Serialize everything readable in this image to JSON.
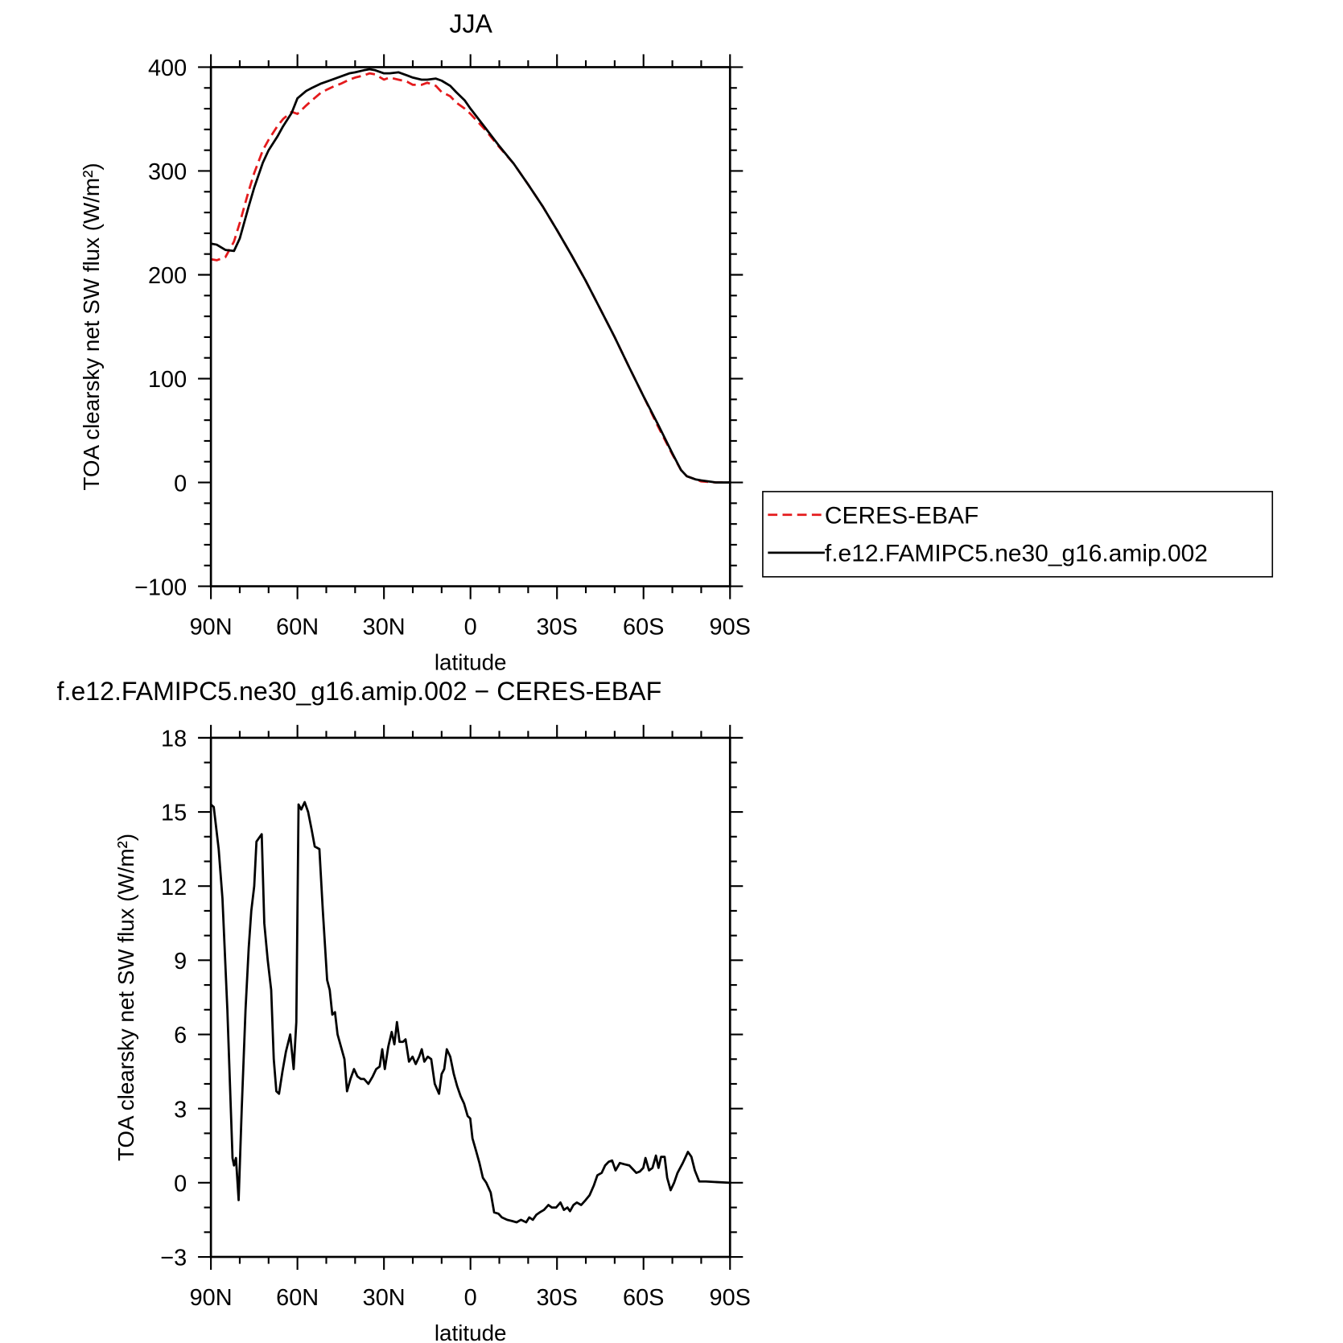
{
  "chart_data": [
    {
      "type": "line",
      "title": "JJA",
      "xlabel": "latitude",
      "ylabel": "TOA clearsky net SW flux (W/m²)",
      "x": [
        90,
        88,
        85,
        82,
        80,
        77,
        75,
        72,
        70,
        67,
        65,
        62,
        60,
        57,
        55,
        52,
        50,
        47,
        45,
        42,
        40,
        37,
        35,
        33,
        30,
        28,
        25,
        22,
        20,
        17,
        15,
        12,
        10,
        7,
        5,
        2,
        0,
        -5,
        -10,
        -15,
        -20,
        -25,
        -30,
        -35,
        -40,
        -45,
        -50,
        -55,
        -60,
        -65,
        -70,
        -73,
        -75,
        -78,
        -80,
        -85,
        -90
      ],
      "series": [
        {
          "name": "CERES-EBAF",
          "color": "#e41a1c",
          "linestyle": "dashed",
          "values": [
            215,
            214,
            217,
            232,
            250,
            280,
            298,
            320,
            330,
            343,
            350,
            357,
            355,
            363,
            368,
            375,
            378,
            382,
            384,
            388,
            390,
            392,
            394,
            393,
            388,
            390,
            388,
            386,
            383,
            383,
            385,
            382,
            376,
            372,
            366,
            360,
            355,
            340,
            323,
            307,
            287,
            266,
            243,
            219,
            194,
            167,
            140,
            111,
            83,
            54,
            27,
            12,
            6,
            3,
            1,
            0,
            0
          ]
        },
        {
          "name": "f.e12.FAMIPC5.ne30_g16.amip.002",
          "color": "#000000",
          "linestyle": "solid",
          "values": [
            230,
            229,
            224,
            223,
            235,
            265,
            284,
            308,
            320,
            333,
            343,
            356,
            370,
            377,
            380,
            384,
            386,
            389,
            391,
            394,
            395,
            397,
            398,
            397,
            394,
            394,
            395,
            392,
            390,
            388,
            388,
            389,
            387,
            382,
            376,
            368,
            360,
            342,
            324,
            307,
            287,
            266,
            243,
            219,
            194,
            167,
            140,
            111,
            83,
            56,
            28,
            12,
            6,
            3,
            2,
            0,
            0
          ]
        }
      ],
      "xlim": [
        90,
        -90
      ],
      "xticks": [
        {
          "value": 90,
          "label": "90N"
        },
        {
          "value": 60,
          "label": "60N"
        },
        {
          "value": 30,
          "label": "30N"
        },
        0,
        {
          "value": -30,
          "label": "30S"
        },
        {
          "value": -60,
          "label": "60S"
        },
        {
          "value": -90,
          "label": "90S"
        }
      ],
      "ylim": [
        -100,
        400
      ],
      "yticks": [
        {
          "value": -100,
          "label": "−100"
        },
        0,
        100,
        200,
        300,
        400
      ],
      "legend": "right"
    },
    {
      "type": "line",
      "title": "f.e12.FAMIPC5.ne30_g16.amip.002 − CERES-EBAF",
      "xlabel": "latitude",
      "ylabel": "TOA clearsky net SW flux (W/m²)",
      "x": [
        90,
        89,
        87.3,
        86,
        84.3,
        82.5,
        82,
        81.3,
        80.4,
        79.3,
        78,
        76.9,
        76,
        75,
        74.2,
        73,
        72.4,
        71.5,
        70.3,
        69.1,
        68.2,
        67.3,
        66.4,
        65.2,
        64,
        62.5,
        61.3,
        60.4,
        59.6,
        58.7,
        57.5,
        56.3,
        55.1,
        54,
        52.4,
        51.2,
        49.7,
        48.8,
        47.9,
        47,
        46.1,
        44.9,
        43.7,
        42.8,
        41.6,
        40.4,
        39.2,
        38,
        36.9,
        35.4,
        33.9,
        32.7,
        31.5,
        30.6,
        29.7,
        28.5,
        27.3,
        26.4,
        25.5,
        24.6,
        23.4,
        22.5,
        21.3,
        20.1,
        19,
        17.8,
        16.9,
        16,
        14.8,
        13.6,
        12.4,
        10.9,
        10,
        9.1,
        8.2,
        7,
        5.8,
        4.6,
        3.4,
        2.2,
        1,
        0.1,
        -0.7,
        -1.9,
        -3.1,
        -4.3,
        -5.5,
        -7,
        -8.2,
        -9.7,
        -10.9,
        -12.7,
        -14.5,
        -16,
        -17.5,
        -19.3,
        -20.4,
        -21.6,
        -22.8,
        -24,
        -25.5,
        -27,
        -28.2,
        -29.7,
        -31.2,
        -32.4,
        -33.6,
        -34.5,
        -35.7,
        -36.9,
        -38.4,
        -39.9,
        -41.3,
        -42.8,
        -44,
        -45.5,
        -46.7,
        -47.9,
        -49.1,
        -50.3,
        -51.8,
        -53.3,
        -55.1,
        -56.3,
        -57.5,
        -58.7,
        -59.9,
        -60.7,
        -61.9,
        -63.1,
        -64.3,
        -65.2,
        -66.1,
        -67.3,
        -68.2,
        -69.4,
        -70.6,
        -71.8,
        -73.6,
        -75.4,
        -76.6,
        -77.8,
        -79.3,
        -81.6,
        -90
      ],
      "series": [
        {
          "name": "f.e12.FAMIPC5.ne30_g16.amip.002 - CERES-EBAF",
          "color": "#000000",
          "linestyle": "solid",
          "values": [
            15.3,
            15.2,
            13.5,
            11.5,
            7,
            1,
            0.7,
            1,
            -0.7,
            3,
            7,
            9.5,
            11,
            12,
            13.8,
            14,
            14.1,
            10.5,
            9,
            7.8,
            5,
            3.7,
            3.6,
            4.5,
            5.3,
            6,
            4.6,
            6.5,
            15.3,
            15.1,
            15.4,
            15,
            14.3,
            13.6,
            13.5,
            11,
            8.2,
            7.8,
            6.8,
            6.9,
            6,
            5.5,
            5,
            3.7,
            4.2,
            4.6,
            4.3,
            4.2,
            4.2,
            4,
            4.3,
            4.6,
            4.7,
            5.4,
            4.6,
            5.5,
            6.1,
            5.6,
            6.5,
            5.7,
            5.7,
            5.8,
            4.9,
            5.1,
            4.8,
            5.1,
            5.4,
            4.9,
            5.1,
            5,
            4,
            3.6,
            4.4,
            4.6,
            5.4,
            5.1,
            4.4,
            3.9,
            3.5,
            3.2,
            2.7,
            2.6,
            1.8,
            1.3,
            0.8,
            0.2,
            0,
            -0.4,
            -1.2,
            -1.25,
            -1.4,
            -1.5,
            -1.55,
            -1.6,
            -1.5,
            -1.6,
            -1.4,
            -1.5,
            -1.3,
            -1.2,
            -1.1,
            -0.9,
            -1,
            -1,
            -0.8,
            -1.1,
            -1,
            -1.15,
            -0.9,
            -0.8,
            -0.9,
            -0.7,
            -0.5,
            -0.1,
            0.3,
            0.4,
            0.7,
            0.85,
            0.9,
            0.5,
            0.8,
            0.75,
            0.7,
            0.55,
            0.4,
            0.45,
            0.6,
            1,
            0.5,
            0.6,
            1.1,
            0.6,
            1.05,
            1.05,
            0.2,
            -0.3,
            0,
            0.4,
            0.8,
            1.25,
            1.05,
            0.5,
            0.05,
            0.05,
            0
          ]
        }
      ],
      "xlim": [
        90,
        -90
      ],
      "xticks": [
        {
          "value": 90,
          "label": "90N"
        },
        {
          "value": 60,
          "label": "60N"
        },
        {
          "value": 30,
          "label": "30N"
        },
        0,
        {
          "value": -30,
          "label": "30S"
        },
        {
          "value": -60,
          "label": "60S"
        },
        {
          "value": -90,
          "label": "90S"
        }
      ],
      "ylim": [
        -3,
        18
      ],
      "yticks": [
        {
          "value": -3,
          "label": "−3"
        },
        0,
        3,
        6,
        9,
        12,
        15,
        18
      ]
    }
  ]
}
